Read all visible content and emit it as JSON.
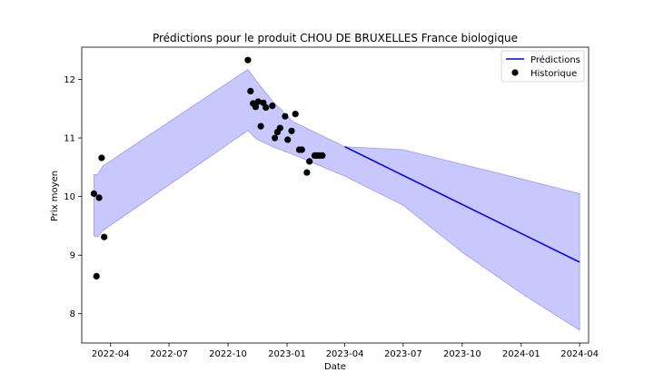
{
  "chart_data": {
    "type": "line",
    "title": "Prédictions pour le produit CHOU DE BRUXELLES France biologique",
    "xlabel": "Date",
    "ylabel": "Prix moyen",
    "xlim": [
      "2022-02-15",
      "2024-04-15"
    ],
    "ylim": [
      7.5,
      12.55
    ],
    "x_ticks": [
      "2022-04-01",
      "2022-07-01",
      "2022-10-01",
      "2023-01-01",
      "2023-04-01",
      "2023-07-01",
      "2023-10-01",
      "2024-01-01",
      "2024-04-01"
    ],
    "x_tick_labels": [
      "2022-04",
      "2022-07",
      "2022-10",
      "2023-01",
      "2023-04",
      "2023-07",
      "2023-10",
      "2024-01",
      "2024-04"
    ],
    "y_ticks": [
      8,
      9,
      10,
      11,
      12
    ],
    "y_tick_labels": [
      "8",
      "9",
      "10",
      "11",
      "12"
    ],
    "grid": false,
    "legend_position": "top-right",
    "colors": {
      "prediction_line": "#0000ff",
      "band_fill": "#c8c8ff",
      "band_edge": "#9a9af0",
      "history_points": "#000000"
    },
    "series": [
      {
        "name": "Prédictions",
        "kind": "line",
        "x": [
          "2023-04-01",
          "2024-04-01"
        ],
        "y": [
          10.85,
          8.88
        ]
      },
      {
        "name": "Historique",
        "kind": "scatter",
        "x": [
          "2022-03-06",
          "2022-03-10",
          "2022-03-14",
          "2022-03-18",
          "2022-03-22",
          "2022-11-01",
          "2022-11-05",
          "2022-11-09",
          "2022-11-13",
          "2022-11-17",
          "2022-11-21",
          "2022-11-25",
          "2022-11-29",
          "2022-12-09",
          "2022-12-13",
          "2022-12-17",
          "2022-12-21",
          "2022-12-29",
          "2023-01-02",
          "2023-01-08",
          "2023-01-14",
          "2023-01-20",
          "2023-01-24",
          "2023-02-01",
          "2023-02-05",
          "2023-02-13",
          "2023-02-17",
          "2023-02-21",
          "2023-02-25"
        ],
        "y": [
          10.05,
          8.64,
          9.98,
          10.66,
          9.31,
          12.33,
          11.8,
          11.59,
          11.53,
          11.62,
          11.2,
          11.6,
          11.52,
          11.55,
          11.0,
          11.1,
          11.17,
          11.37,
          10.97,
          11.12,
          11.41,
          10.8,
          10.8,
          10.41,
          10.6,
          10.7,
          10.7,
          10.7,
          10.7
        ]
      }
    ],
    "band": {
      "description": "confidence interval",
      "x": [
        "2022-03-06",
        "2022-03-12",
        "2022-03-20",
        "2022-11-01",
        "2022-11-15",
        "2022-12-10",
        "2023-01-10",
        "2023-04-01",
        "2023-07-01",
        "2023-10-01",
        "2024-01-01",
        "2024-04-01"
      ],
      "upper": [
        10.37,
        10.38,
        10.52,
        12.17,
        11.96,
        11.62,
        11.28,
        10.85,
        10.8,
        10.55,
        10.3,
        10.05
      ],
      "lower": [
        9.33,
        9.31,
        9.42,
        11.13,
        10.98,
        10.85,
        10.72,
        10.35,
        9.85,
        9.05,
        8.35,
        7.72
      ]
    }
  }
}
